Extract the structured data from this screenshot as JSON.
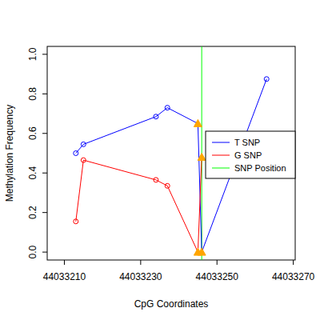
{
  "chart_data": {
    "type": "line",
    "x_label": "CpG Coordinates",
    "y_label": "Methylation Frequency",
    "xlim": [
      44033205.5,
      44033270.5
    ],
    "xticks": [
      44033210,
      44033230,
      44033250,
      44033270
    ],
    "ylim": [
      -0.04,
      1.04
    ],
    "yticks": [
      {
        "value": 0,
        "label": "0.0"
      },
      0.2,
      0.4,
      0.6,
      0.8,
      {
        "value": 1,
        "label": "1.0"
      }
    ],
    "legend": "right",
    "marker": "circle",
    "series": [
      {
        "name": "T SNP",
        "color": "#0000FF",
        "x": [
          44033213,
          44033215,
          44033234,
          44033237,
          44033245,
          44033246,
          44033263
        ],
        "values": [
          0.5,
          0.545,
          0.685,
          0.73,
          0.65,
          0.0,
          0.875
        ]
      },
      {
        "name": "G SNP",
        "color": "#FF0000",
        "x": [
          44033213,
          44033215,
          44033234,
          44033237,
          44033245,
          44033246
        ],
        "values": [
          0.155,
          0.465,
          0.365,
          0.335,
          0.0,
          0.48
        ]
      }
    ],
    "highlighted_x": [
      44033245,
      44033246
    ],
    "highlight_color": "#FFA500",
    "snp": {
      "name": "SNP Position",
      "color": "#00FF00",
      "x": 44033246
    }
  }
}
